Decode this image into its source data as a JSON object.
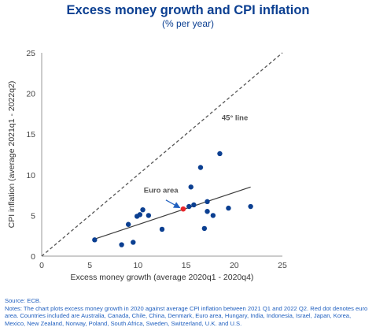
{
  "header": {
    "title": "Excess money growth and CPI inflation",
    "subtitle": "(% per year)"
  },
  "footer": {
    "source": "Source: ECB.",
    "notes": "Notes: The chart plots excess money growth in 2020 against average CPI inflation between 2021 Q1 and 2022 Q2. Red dot denotes euro area. Countries included are Australia, Canada, Chile, China, Denmark, Euro area, Hungary, India, Indonesia, Israel, Japan, Korea, Mexico, New Zealand, Norway, Poland, South Africa, Sweden, Switzerland, U.K. and U.S."
  },
  "colors": {
    "title": "#0b3f91",
    "country_dot": "#0b3f91",
    "euro_area_dot": "#e8262b",
    "trend_line": "#3c3c3c",
    "reference_line": "#555555",
    "arrow": "#1f5fbf"
  },
  "chart_data": {
    "type": "scatter",
    "title": "Excess money growth and CPI inflation",
    "subtitle": "(% per year)",
    "xlabel": "Excess money growth (average 2020q1 - 2020q4)",
    "ylabel": "CPI inflation (average 2021q1 - 2022q2)",
    "xlim": [
      0,
      25
    ],
    "ylim": [
      0,
      25
    ],
    "xticks": [
      "0",
      "5",
      "10",
      "15",
      "20",
      "25"
    ],
    "yticks": [
      "0",
      "5",
      "10",
      "15",
      "20",
      "25"
    ],
    "grid": false,
    "points": [
      {
        "x": 5.5,
        "y": 2.0
      },
      {
        "x": 8.3,
        "y": 1.4
      },
      {
        "x": 9.0,
        "y": 3.9
      },
      {
        "x": 9.5,
        "y": 1.7
      },
      {
        "x": 9.9,
        "y": 4.9
      },
      {
        "x": 10.2,
        "y": 5.1
      },
      {
        "x": 10.5,
        "y": 5.7
      },
      {
        "x": 11.1,
        "y": 5.0
      },
      {
        "x": 12.5,
        "y": 3.3
      },
      {
        "x": 15.3,
        "y": 6.1
      },
      {
        "x": 15.5,
        "y": 8.5
      },
      {
        "x": 15.8,
        "y": 6.3
      },
      {
        "x": 16.5,
        "y": 10.9
      },
      {
        "x": 16.9,
        "y": 3.4
      },
      {
        "x": 17.2,
        "y": 6.7
      },
      {
        "x": 17.2,
        "y": 5.5
      },
      {
        "x": 17.8,
        "y": 5.0
      },
      {
        "x": 18.5,
        "y": 12.6
      },
      {
        "x": 19.4,
        "y": 5.9
      },
      {
        "x": 21.7,
        "y": 6.1
      }
    ],
    "highlight": {
      "label": "Euro area",
      "x": 14.7,
      "y": 5.8
    },
    "trend_line": {
      "x": [
        5.5,
        21.7
      ],
      "y": [
        2.1,
        8.5
      ]
    },
    "reference_line": {
      "label": "45° line",
      "x": [
        0,
        25
      ],
      "y": [
        0,
        25
      ]
    }
  }
}
